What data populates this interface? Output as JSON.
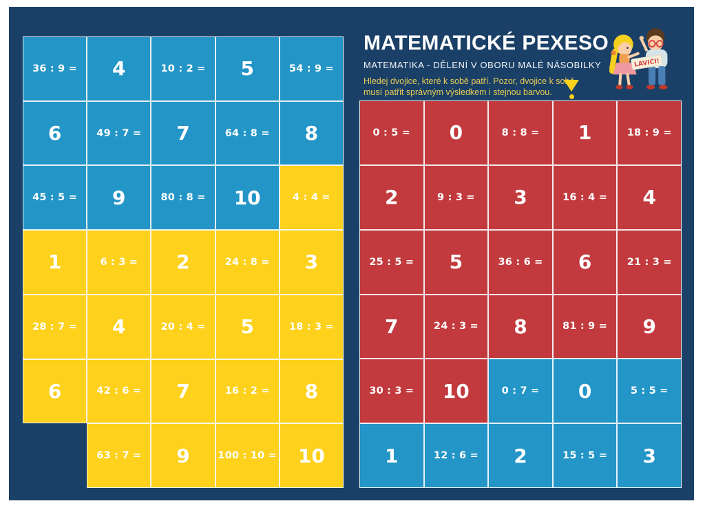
{
  "header": {
    "title": "MATEMATICKÉ PEXESO",
    "subtitle": "MATEMATIKA - DĚLENÍ V OBORU MALÉ NÁSOBILKY",
    "instructions_line1": "Hledej dvojice, které k sobě patří. Pozor, dvojice k sobě",
    "instructions_line2": "musí patřit správným výsledkem i stejnou barvou.",
    "banner_text": "LAVICI!"
  },
  "colors": {
    "background": "#1b4067",
    "page_margin": "#ffffff",
    "blue_card": "#2395c7",
    "yellow_card": "#fdd11c",
    "red_card": "#c23a3e",
    "card_border": "#f5f8fa",
    "card_text": "#ffffff",
    "instruction_text": "#e5cb55",
    "warning_icon": "#fdd11c"
  },
  "grids": {
    "left": {
      "rows": [
        [
          {
            "text": "36 : 9 =",
            "kind": "expr",
            "color": "blue"
          },
          {
            "text": "4",
            "kind": "ans",
            "color": "blue"
          },
          {
            "text": "10 : 2 =",
            "kind": "expr",
            "color": "blue"
          },
          {
            "text": "5",
            "kind": "ans",
            "color": "blue"
          },
          {
            "text": "54 : 9 =",
            "kind": "expr",
            "color": "blue"
          }
        ],
        [
          {
            "text": "6",
            "kind": "ans",
            "color": "blue"
          },
          {
            "text": "49 : 7 =",
            "kind": "expr",
            "color": "blue"
          },
          {
            "text": "7",
            "kind": "ans",
            "color": "blue"
          },
          {
            "text": "64 : 8 =",
            "kind": "expr",
            "color": "blue"
          },
          {
            "text": "8",
            "kind": "ans",
            "color": "blue"
          }
        ],
        [
          {
            "text": "45 : 5 =",
            "kind": "expr",
            "color": "blue"
          },
          {
            "text": "9",
            "kind": "ans",
            "color": "blue"
          },
          {
            "text": "80 : 8 =",
            "kind": "expr",
            "color": "blue"
          },
          {
            "text": "10",
            "kind": "ans",
            "color": "blue"
          },
          {
            "text": "4 : 4 =",
            "kind": "expr",
            "color": "yellow"
          }
        ],
        [
          {
            "text": "1",
            "kind": "ans",
            "color": "yellow"
          },
          {
            "text": "6 : 3 =",
            "kind": "expr",
            "color": "yellow"
          },
          {
            "text": "2",
            "kind": "ans",
            "color": "yellow"
          },
          {
            "text": "24 : 8 =",
            "kind": "expr",
            "color": "yellow"
          },
          {
            "text": "3",
            "kind": "ans",
            "color": "yellow"
          }
        ],
        [
          {
            "text": "28 : 7 =",
            "kind": "expr",
            "color": "yellow"
          },
          {
            "text": "4",
            "kind": "ans",
            "color": "yellow"
          },
          {
            "text": "20 : 4 =",
            "kind": "expr",
            "color": "yellow"
          },
          {
            "text": "5",
            "kind": "ans",
            "color": "yellow"
          },
          {
            "text": "18 : 3 =",
            "kind": "expr",
            "color": "yellow"
          }
        ],
        [
          {
            "text": "6",
            "kind": "ans",
            "color": "yellow"
          },
          {
            "text": "42 : 6 =",
            "kind": "expr",
            "color": "yellow"
          },
          {
            "text": "7",
            "kind": "ans",
            "color": "yellow"
          },
          {
            "text": "16 : 2 =",
            "kind": "expr",
            "color": "yellow"
          },
          {
            "text": "8",
            "kind": "ans",
            "color": "yellow"
          }
        ],
        [
          {
            "text": "",
            "kind": "empty",
            "color": "none"
          },
          {
            "text": "63 : 7 =",
            "kind": "expr",
            "color": "yellow"
          },
          {
            "text": "9",
            "kind": "ans",
            "color": "yellow"
          },
          {
            "text": "100 : 10 =",
            "kind": "expr",
            "color": "yellow"
          },
          {
            "text": "10",
            "kind": "ans",
            "color": "yellow"
          }
        ]
      ]
    },
    "right": {
      "rows": [
        [
          {
            "text": "0 : 5 =",
            "kind": "expr",
            "color": "red"
          },
          {
            "text": "0",
            "kind": "ans",
            "color": "red"
          },
          {
            "text": "8 : 8 =",
            "kind": "expr",
            "color": "red"
          },
          {
            "text": "1",
            "kind": "ans",
            "color": "red"
          },
          {
            "text": "18 : 9 =",
            "kind": "expr",
            "color": "red"
          }
        ],
        [
          {
            "text": "2",
            "kind": "ans",
            "color": "red"
          },
          {
            "text": "9 : 3 =",
            "kind": "expr",
            "color": "red"
          },
          {
            "text": "3",
            "kind": "ans",
            "color": "red"
          },
          {
            "text": "16 : 4 =",
            "kind": "expr",
            "color": "red"
          },
          {
            "text": "4",
            "kind": "ans",
            "color": "red"
          }
        ],
        [
          {
            "text": "25 : 5 =",
            "kind": "expr",
            "color": "red"
          },
          {
            "text": "5",
            "kind": "ans",
            "color": "red"
          },
          {
            "text": "36 : 6 =",
            "kind": "expr",
            "color": "red"
          },
          {
            "text": "6",
            "kind": "ans",
            "color": "red"
          },
          {
            "text": "21 : 3 =",
            "kind": "expr",
            "color": "red"
          }
        ],
        [
          {
            "text": "7",
            "kind": "ans",
            "color": "red"
          },
          {
            "text": "24 : 3 =",
            "kind": "expr",
            "color": "red"
          },
          {
            "text": "8",
            "kind": "ans",
            "color": "red"
          },
          {
            "text": "81 : 9 =",
            "kind": "expr",
            "color": "red"
          },
          {
            "text": "9",
            "kind": "ans",
            "color": "red"
          }
        ],
        [
          {
            "text": "30 : 3 =",
            "kind": "expr",
            "color": "red"
          },
          {
            "text": "10",
            "kind": "ans",
            "color": "red"
          },
          {
            "text": "0 : 7 =",
            "kind": "expr",
            "color": "blue"
          },
          {
            "text": "0",
            "kind": "ans",
            "color": "blue"
          },
          {
            "text": "5 : 5 =",
            "kind": "expr",
            "color": "blue"
          }
        ],
        [
          {
            "text": "1",
            "kind": "ans",
            "color": "blue"
          },
          {
            "text": "12 : 6 =",
            "kind": "expr",
            "color": "blue"
          },
          {
            "text": "2",
            "kind": "ans",
            "color": "blue"
          },
          {
            "text": "15 : 5 =",
            "kind": "expr",
            "color": "blue"
          },
          {
            "text": "3",
            "kind": "ans",
            "color": "blue"
          }
        ]
      ]
    }
  }
}
